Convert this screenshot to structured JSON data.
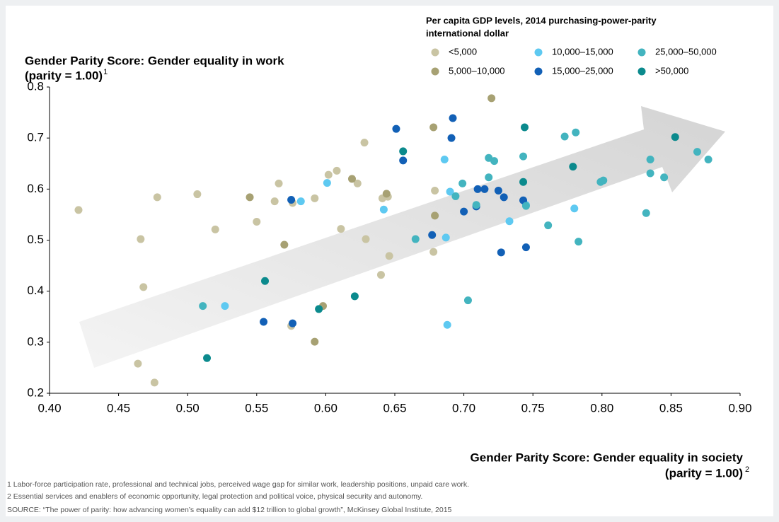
{
  "chart_data": {
    "type": "scatter",
    "title": [
      "Gender Parity Score: Gender equality in work",
      "(parity = 1.00)"
    ],
    "title_note": "1",
    "xlabel": [
      "Gender Parity Score: Gender equality in society",
      "(parity = 1.00)"
    ],
    "xlabel_note": "2",
    "legend_title": [
      "Per capita GDP levels, 2014 purchasing-power-parity",
      "international dollar"
    ],
    "xlim": [
      0.4,
      0.9
    ],
    "ylim": [
      0.2,
      0.8
    ],
    "xticks": [
      {
        "value": 0.4,
        "label": "0.40"
      },
      {
        "value": 0.45,
        "label": "0.45"
      },
      {
        "value": 0.5,
        "label": "0.50"
      },
      {
        "value": 0.55,
        "label": "0.55"
      },
      {
        "value": 0.6,
        "label": "0.60"
      },
      {
        "value": 0.65,
        "label": "0.65"
      },
      {
        "value": 0.7,
        "label": "0.70"
      },
      {
        "value": 0.75,
        "label": "0.75"
      },
      {
        "value": 0.8,
        "label": "0.80"
      },
      {
        "value": 0.85,
        "label": "0.85"
      },
      {
        "value": 0.9,
        "label": "0.90"
      }
    ],
    "yticks": [
      0.2,
      0.3,
      0.4,
      0.5,
      0.6,
      0.7,
      0.8
    ],
    "series": [
      {
        "name": "<5,000",
        "color": "#c9c4a3",
        "x": [
          0.421,
          0.466,
          0.468,
          0.478,
          0.464,
          0.476,
          0.507,
          0.52,
          0.55,
          0.563,
          0.566,
          0.576,
          0.575,
          0.592,
          0.602,
          0.608,
          0.611,
          0.623,
          0.628,
          0.629,
          0.64,
          0.641,
          0.646,
          0.678,
          0.679,
          0.645
        ],
        "values": [
          0.559,
          0.502,
          0.408,
          0.584,
          0.258,
          0.221,
          0.59,
          0.521,
          0.536,
          0.576,
          0.611,
          0.573,
          0.332,
          0.582,
          0.628,
          0.636,
          0.522,
          0.611,
          0.691,
          0.502,
          0.432,
          0.582,
          0.469,
          0.477,
          0.597,
          0.585
        ]
      },
      {
        "name": "5,000–10,000",
        "color": "#a7a173",
        "x": [
          0.545,
          0.57,
          0.592,
          0.598,
          0.619,
          0.644,
          0.678,
          0.679,
          0.72
        ],
        "values": [
          0.584,
          0.491,
          0.301,
          0.371,
          0.62,
          0.591,
          0.721,
          0.548,
          0.778
        ]
      },
      {
        "name": "10,000–15,000",
        "color": "#5ec9f1",
        "x": [
          0.527,
          0.582,
          0.601,
          0.642,
          0.686,
          0.687,
          0.688,
          0.69,
          0.733,
          0.78,
          0.745
        ],
        "values": [
          0.371,
          0.576,
          0.612,
          0.56,
          0.658,
          0.505,
          0.334,
          0.595,
          0.537,
          0.562,
          0.569
        ]
      },
      {
        "name": "15,000–25,000",
        "color": "#1260b6",
        "x": [
          0.555,
          0.576,
          0.575,
          0.651,
          0.656,
          0.677,
          0.691,
          0.692,
          0.7,
          0.709,
          0.71,
          0.715,
          0.725,
          0.729,
          0.727,
          0.743,
          0.745
        ],
        "values": [
          0.34,
          0.337,
          0.579,
          0.718,
          0.656,
          0.51,
          0.7,
          0.739,
          0.556,
          0.566,
          0.6,
          0.6,
          0.597,
          0.584,
          0.476,
          0.578,
          0.486
        ]
      },
      {
        "name": "25,000–50,000",
        "color": "#43b4bf",
        "x": [
          0.511,
          0.665,
          0.694,
          0.699,
          0.703,
          0.709,
          0.718,
          0.718,
          0.722,
          0.743,
          0.745,
          0.761,
          0.773,
          0.781,
          0.783,
          0.799,
          0.801,
          0.832,
          0.835,
          0.835,
          0.845,
          0.869,
          0.877
        ],
        "values": [
          0.371,
          0.502,
          0.586,
          0.611,
          0.382,
          0.569,
          0.623,
          0.661,
          0.655,
          0.664,
          0.567,
          0.529,
          0.703,
          0.711,
          0.497,
          0.614,
          0.617,
          0.553,
          0.631,
          0.658,
          0.623,
          0.673,
          0.658
        ]
      },
      {
        "name": ">50,000",
        "color": "#0b8a8d",
        "x": [
          0.514,
          0.556,
          0.595,
          0.621,
          0.656,
          0.743,
          0.744,
          0.779,
          0.853
        ],
        "values": [
          0.269,
          0.42,
          0.365,
          0.39,
          0.674,
          0.614,
          0.721,
          0.644,
          0.702
        ]
      }
    ],
    "footnotes": [
      "1 Labor-force participation rate, professional and technical jobs, perceived wage gap for similar work, leadership positions, unpaid care work.",
      "2 Essential services and enablers of economic opportunity, legal protection and political voice, physical security and autonomy."
    ],
    "source": "SOURCE: “The power of parity: how advancing women’s equality can add $12 trillion to global growth”, McKinsey Global Institute, 2015"
  }
}
